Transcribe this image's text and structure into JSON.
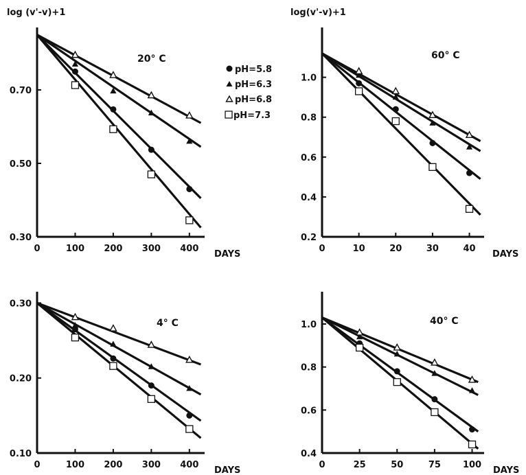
{
  "legend": [
    {
      "label": "pH=5.8",
      "marker": "filled-circle"
    },
    {
      "label": "pH=6.3",
      "marker": "filled-triangle"
    },
    {
      "label": "pH=6.8",
      "marker": "open-triangle"
    },
    {
      "label": "pH=7.3",
      "marker": "open-square"
    }
  ],
  "chart_data": [
    {
      "type": "scatter",
      "title": "20° C",
      "ylabel": "log (v'-v)+1",
      "xlabel": "DAYS",
      "xlim": [
        0,
        440
      ],
      "ylim": [
        0.3,
        0.87
      ],
      "xticks": [
        0,
        100,
        200,
        300,
        400
      ],
      "yticks": [
        0.3,
        0.5,
        0.7
      ],
      "ytick_labels": [
        "0.30",
        "0.50",
        "0.70"
      ],
      "intercept": 0.85,
      "line_end_x": 430,
      "series": [
        {
          "name": "pH=5.8",
          "marker": "filled-circle",
          "x": [
            100,
            200,
            300,
            400
          ],
          "y": [
            0.75,
            0.647,
            0.537,
            0.43
          ],
          "slope_end": 0.405
        },
        {
          "name": "pH=6.3",
          "marker": "filled-triangle",
          "x": [
            100,
            200,
            300,
            400
          ],
          "y": [
            0.77,
            0.697,
            0.637,
            0.56
          ],
          "slope_end": 0.545
        },
        {
          "name": "pH=6.8",
          "marker": "open-triangle",
          "x": [
            100,
            200,
            300,
            400
          ],
          "y": [
            0.795,
            0.74,
            0.685,
            0.63
          ],
          "slope_end": 0.61
        },
        {
          "name": "pH=7.3",
          "marker": "open-square",
          "x": [
            100,
            200,
            300,
            400
          ],
          "y": [
            0.713,
            0.593,
            0.47,
            0.345
          ],
          "slope_end": 0.325
        }
      ]
    },
    {
      "type": "scatter",
      "title": "60° C",
      "ylabel": "log(v'-v)+1",
      "xlabel": "DAYS",
      "xlim": [
        0,
        44
      ],
      "ylim": [
        0.2,
        1.25
      ],
      "xticks": [
        0,
        10,
        20,
        30,
        40
      ],
      "yticks": [
        0.2,
        0.4,
        0.6,
        0.8,
        1.0
      ],
      "ytick_labels": [
        "0.2",
        "0.4",
        "0.6",
        "0.8",
        "1.0"
      ],
      "intercept": 1.12,
      "line_end_x": 43,
      "series": [
        {
          "name": "pH=5.8",
          "marker": "filled-circle",
          "x": [
            10,
            20,
            30,
            40
          ],
          "y": [
            0.97,
            0.84,
            0.67,
            0.52
          ],
          "slope_end": 0.49
        },
        {
          "name": "pH=6.3",
          "marker": "filled-triangle",
          "x": [
            10,
            20,
            30,
            40
          ],
          "y": [
            1.01,
            0.9,
            0.77,
            0.65
          ],
          "slope_end": 0.63
        },
        {
          "name": "pH=6.8",
          "marker": "open-triangle",
          "x": [
            10,
            20,
            30,
            40
          ],
          "y": [
            1.03,
            0.93,
            0.81,
            0.71
          ],
          "slope_end": 0.68
        },
        {
          "name": "pH=7.3",
          "marker": "open-square",
          "x": [
            10,
            20,
            30,
            40
          ],
          "y": [
            0.93,
            0.78,
            0.55,
            0.34
          ],
          "slope_end": 0.31
        }
      ]
    },
    {
      "type": "scatter",
      "title": "4° C",
      "ylabel": "",
      "xlabel": "DAYS",
      "xlim": [
        0,
        440
      ],
      "ylim": [
        0.1,
        0.315
      ],
      "xticks": [
        0,
        100,
        200,
        300,
        400
      ],
      "yticks": [
        0.1,
        0.2,
        0.3
      ],
      "ytick_labels": [
        "0.10",
        "0.20",
        "0.30"
      ],
      "intercept": 0.3,
      "line_end_x": 430,
      "series": [
        {
          "name": "pH=5.8",
          "marker": "filled-circle",
          "x": [
            100,
            200,
            300,
            400
          ],
          "y": [
            0.265,
            0.226,
            0.19,
            0.15
          ],
          "slope_end": 0.143
        },
        {
          "name": "pH=6.3",
          "marker": "filled-triangle",
          "x": [
            100,
            200,
            300,
            400
          ],
          "y": [
            0.27,
            0.245,
            0.215,
            0.186
          ],
          "slope_end": 0.178
        },
        {
          "name": "pH=6.8",
          "marker": "open-triangle",
          "x": [
            100,
            200,
            300,
            400
          ],
          "y": [
            0.281,
            0.266,
            0.244,
            0.224
          ],
          "slope_end": 0.218
        },
        {
          "name": "pH=7.3",
          "marker": "open-square",
          "x": [
            100,
            200,
            300,
            400
          ],
          "y": [
            0.254,
            0.216,
            0.172,
            0.132
          ],
          "slope_end": 0.12
        }
      ]
    },
    {
      "type": "scatter",
      "title": "40° C",
      "ylabel": "",
      "xlabel": "DAYS",
      "xlim": [
        0,
        108
      ],
      "ylim": [
        0.4,
        1.15
      ],
      "xticks": [
        0,
        25,
        50,
        75,
        100
      ],
      "yticks": [
        0.4,
        0.6,
        0.8,
        1.0
      ],
      "ytick_labels": [
        "0.4",
        "0.6",
        "0.8",
        "1.0"
      ],
      "intercept": 1.03,
      "line_end_x": 104,
      "series": [
        {
          "name": "pH=5.8",
          "marker": "filled-circle",
          "x": [
            25,
            50,
            75,
            100
          ],
          "y": [
            0.91,
            0.78,
            0.65,
            0.51
          ],
          "slope_end": 0.5
        },
        {
          "name": "pH=6.3",
          "marker": "filled-triangle",
          "x": [
            25,
            50,
            75,
            100
          ],
          "y": [
            0.94,
            0.86,
            0.77,
            0.69
          ],
          "slope_end": 0.67
        },
        {
          "name": "pH=6.8",
          "marker": "open-triangle",
          "x": [
            25,
            50,
            75,
            100
          ],
          "y": [
            0.96,
            0.89,
            0.82,
            0.74
          ],
          "slope_end": 0.73
        },
        {
          "name": "pH=7.3",
          "marker": "open-square",
          "x": [
            25,
            50,
            75,
            100
          ],
          "y": [
            0.89,
            0.73,
            0.59,
            0.44
          ],
          "slope_end": 0.42
        }
      ]
    }
  ]
}
